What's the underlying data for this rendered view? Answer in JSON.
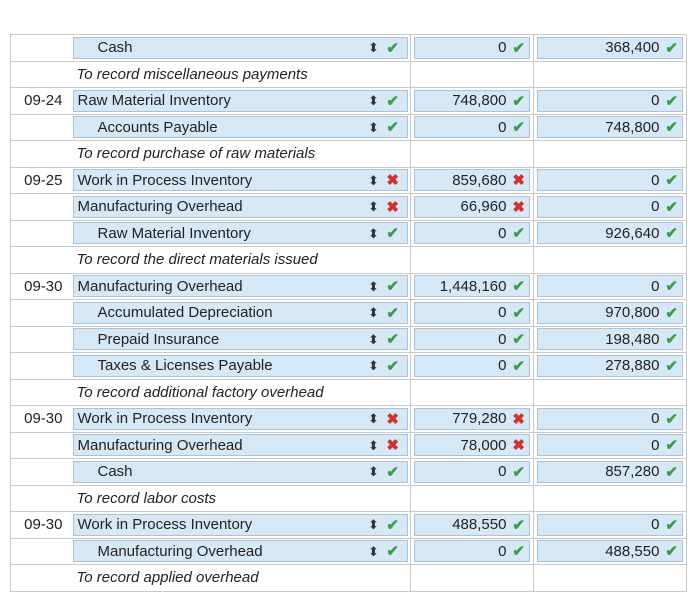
{
  "rows": [
    {
      "date": "",
      "account": "Cash",
      "indent": 1,
      "st": "correct",
      "debit": "0",
      "dst": "correct",
      "credit": "368,400",
      "cst": "correct",
      "type": "entry"
    },
    {
      "date": "",
      "account": "To record miscellaneous payments",
      "type": "explain"
    },
    {
      "date": "09-24",
      "account": "Raw Material Inventory",
      "indent": 0,
      "st": "correct",
      "debit": "748,800",
      "dst": "correct",
      "credit": "0",
      "cst": "correct",
      "type": "entry"
    },
    {
      "date": "",
      "account": "Accounts Payable",
      "indent": 1,
      "st": "correct",
      "debit": "0",
      "dst": "correct",
      "credit": "748,800",
      "cst": "correct",
      "type": "entry"
    },
    {
      "date": "",
      "account": "To record purchase of raw materials",
      "type": "explain"
    },
    {
      "date": "09-25",
      "account": "Work in Process Inventory",
      "indent": 0,
      "st": "wrong",
      "debit": "859,680",
      "dst": "wrong",
      "credit": "0",
      "cst": "correct",
      "type": "entry"
    },
    {
      "date": "",
      "account": "Manufacturing Overhead",
      "indent": 0,
      "st": "wrong",
      "debit": "66,960",
      "dst": "wrong",
      "credit": "0",
      "cst": "correct",
      "type": "entry"
    },
    {
      "date": "",
      "account": "Raw Material Inventory",
      "indent": 1,
      "st": "correct",
      "debit": "0",
      "dst": "correct",
      "credit": "926,640",
      "cst": "correct",
      "type": "entry"
    },
    {
      "date": "",
      "account": "To record the direct materials issued",
      "type": "explain"
    },
    {
      "date": "09-30",
      "account": "Manufacturing Overhead",
      "indent": 0,
      "st": "correct",
      "debit": "1,448,160",
      "dst": "correct",
      "credit": "0",
      "cst": "correct",
      "type": "entry"
    },
    {
      "date": "",
      "account": "Accumulated Depreciation",
      "indent": 1,
      "st": "correct",
      "debit": "0",
      "dst": "correct",
      "credit": "970,800",
      "cst": "correct",
      "type": "entry"
    },
    {
      "date": "",
      "account": "Prepaid Insurance",
      "indent": 1,
      "st": "correct",
      "debit": "0",
      "dst": "correct",
      "credit": "198,480",
      "cst": "correct",
      "type": "entry"
    },
    {
      "date": "",
      "account": "Taxes & Licenses Payable",
      "indent": 1,
      "st": "correct",
      "debit": "0",
      "dst": "correct",
      "credit": "278,880",
      "cst": "correct",
      "type": "entry"
    },
    {
      "date": "",
      "account": "To record additional factory overhead",
      "type": "explain"
    },
    {
      "date": "09-30",
      "account": "Work in Process Inventory",
      "indent": 0,
      "st": "wrong",
      "debit": "779,280",
      "dst": "wrong",
      "credit": "0",
      "cst": "correct",
      "type": "entry"
    },
    {
      "date": "",
      "account": "Manufacturing Overhead",
      "indent": 0,
      "st": "wrong",
      "debit": "78,000",
      "dst": "wrong",
      "credit": "0",
      "cst": "correct",
      "type": "entry"
    },
    {
      "date": "",
      "account": "Cash",
      "indent": 1,
      "st": "correct",
      "debit": "0",
      "dst": "correct",
      "credit": "857,280",
      "cst": "correct",
      "type": "entry"
    },
    {
      "date": "",
      "account": "To record labor costs",
      "type": "explain"
    },
    {
      "date": "09-30",
      "account": "Work in Process Inventory",
      "indent": 0,
      "st": "correct",
      "debit": "488,550",
      "dst": "correct",
      "credit": "0",
      "cst": "correct",
      "type": "entry"
    },
    {
      "date": "",
      "account": "Manufacturing Overhead",
      "indent": 1,
      "st": "correct",
      "debit": "0",
      "dst": "correct",
      "credit": "488,550",
      "cst": "correct",
      "type": "entry"
    },
    {
      "date": "",
      "account": "To record applied overhead",
      "type": "explain"
    }
  ],
  "icons": {
    "correct": "✔",
    "wrong": "✖",
    "selector": "⬍"
  },
  "colors": {
    "correct": "#3a9d4a",
    "wrong": "#d0312d",
    "field": "#d6e7f5"
  }
}
